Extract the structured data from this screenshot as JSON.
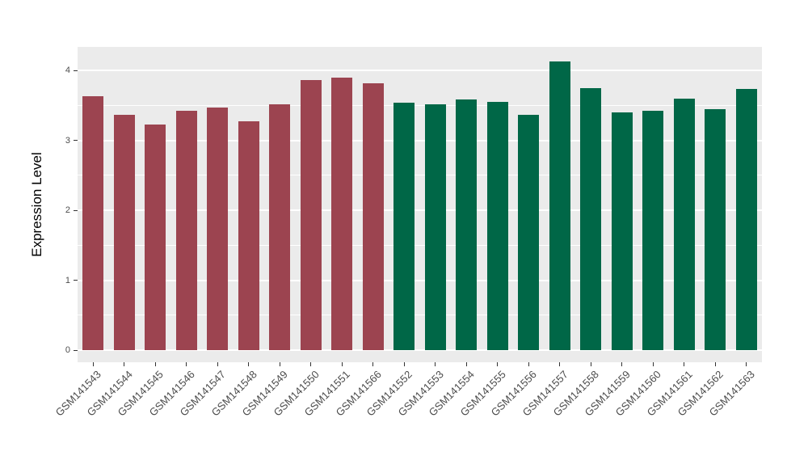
{
  "chart_data": {
    "type": "bar",
    "title": "",
    "xlabel": "",
    "ylabel": "Expression Level",
    "categories": [
      "GSM141543",
      "GSM141544",
      "GSM141545",
      "GSM141546",
      "GSM141547",
      "GSM141548",
      "GSM141549",
      "GSM141550",
      "GSM141551",
      "GSM141566",
      "GSM141552",
      "GSM141553",
      "GSM141554",
      "GSM141555",
      "GSM141556",
      "GSM141557",
      "GSM141558",
      "GSM141559",
      "GSM141560",
      "GSM141561",
      "GSM141562",
      "GSM141563"
    ],
    "values": [
      3.63,
      3.37,
      3.22,
      3.42,
      3.47,
      3.27,
      3.51,
      3.86,
      3.9,
      3.82,
      3.54,
      3.51,
      3.58,
      3.55,
      3.37,
      4.13,
      3.75,
      3.4,
      3.42,
      3.59,
      3.45,
      3.73
    ],
    "point_groups": [
      "group1",
      "group1",
      "group1",
      "group1",
      "group1",
      "group1",
      "group1",
      "group1",
      "group1",
      "group1",
      "group2",
      "group2",
      "group2",
      "group2",
      "group2",
      "group2",
      "group2",
      "group2",
      "group2",
      "group2",
      "group2",
      "group2"
    ],
    "group_colors": {
      "group1": "#9C4450",
      "group2": "#006747"
    },
    "yticks": [
      0,
      1,
      2,
      3,
      4
    ],
    "ylim": [
      0,
      4.34
    ],
    "legend": "none",
    "grid": "major-and-minor",
    "colors": {
      "panel_background": "#EBEBEB",
      "gridline": "#FFFFFF",
      "tick_mark": "#333333",
      "tick_label": "#4D4D4D",
      "axis_title": "#000000",
      "figure_background": "#FFFFFF"
    }
  }
}
